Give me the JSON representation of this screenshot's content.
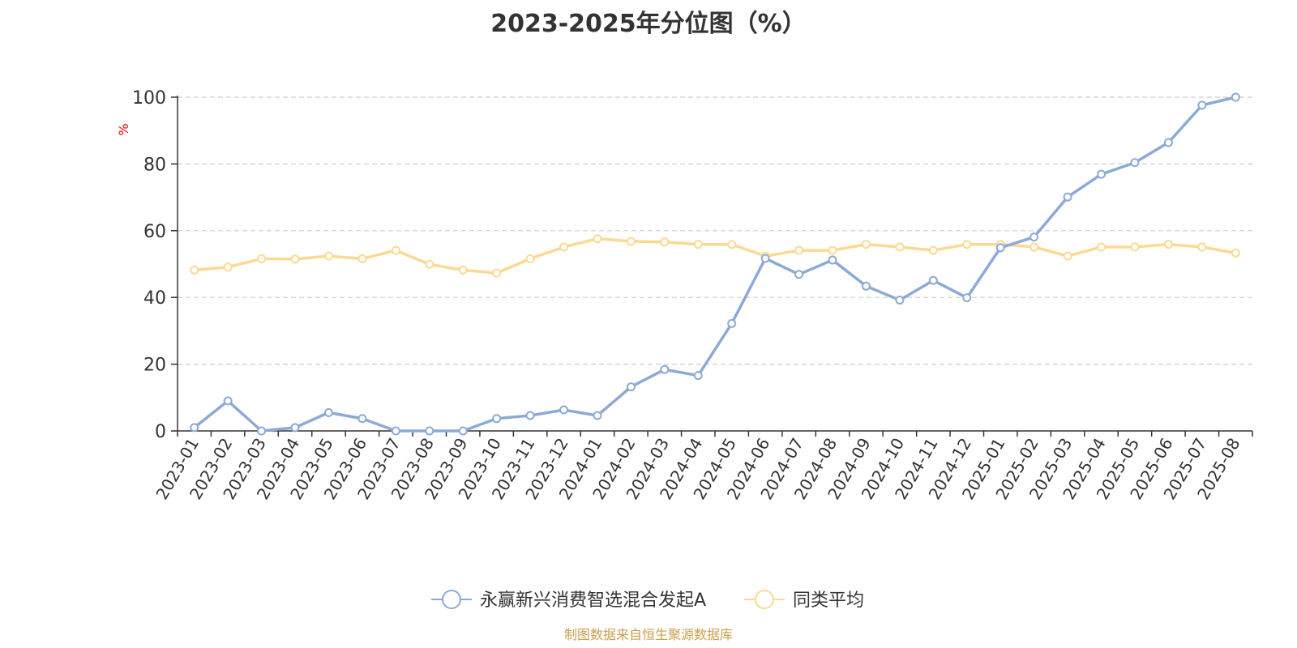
{
  "colors": {
    "series_0": "#8caad6",
    "series_1": "#fcd993",
    "axis": "#333333",
    "grid": "#cccccc",
    "ylabel": "#ff0000",
    "footer": "#c8a050"
  },
  "footer": {
    "source": "制图数据来自恒生聚源数据库"
  },
  "chart_data": {
    "type": "line",
    "title": "2023-2025年分位图（%）",
    "ylabel": "%",
    "xlabel": "",
    "ylim": [
      0,
      100
    ],
    "yticks": [
      0,
      20,
      40,
      60,
      80,
      100
    ],
    "grid": "horizontal-dashed",
    "legend_position": "bottom",
    "categories": [
      "2023-01",
      "2023-02",
      "2023-03",
      "2023-04",
      "2023-05",
      "2023-06",
      "2023-07",
      "2023-08",
      "2023-09",
      "2023-10",
      "2023-11",
      "2023-12",
      "2024-01",
      "2024-02",
      "2024-03",
      "2024-04",
      "2024-05",
      "2024-06",
      "2024-07",
      "2024-08",
      "2024-09",
      "2024-10",
      "2024-11",
      "2024-12",
      "2025-01",
      "2025-02",
      "2025-03",
      "2025-04",
      "2025-05",
      "2025-06",
      "2025-07",
      "2025-08"
    ],
    "series": [
      {
        "name": "永赢新兴消费智选混合发起A",
        "values": [
          1,
          9,
          0,
          1,
          5.5,
          3.7,
          0,
          0,
          0,
          3.7,
          4.6,
          6.3,
          4.6,
          13.2,
          18.4,
          16.6,
          32.2,
          51.7,
          46.9,
          51.2,
          43.4,
          39.2,
          45.1,
          39.9,
          54.9,
          58.1,
          70.1,
          76.9,
          80.4,
          86.4,
          97.6,
          100
        ]
      },
      {
        "name": "同类平均",
        "values": [
          48.2,
          49.1,
          51.6,
          51.5,
          52.4,
          51.6,
          54.1,
          49.9,
          48.2,
          47.3,
          51.6,
          55.1,
          57.6,
          56.8,
          56.6,
          55.9,
          55.9,
          52.4,
          54.1,
          54.1,
          55.9,
          55.1,
          54.1,
          55.9,
          55.9,
          55.1,
          52.4,
          55.1,
          55.1,
          55.9,
          55.1,
          53.3
        ]
      }
    ]
  }
}
